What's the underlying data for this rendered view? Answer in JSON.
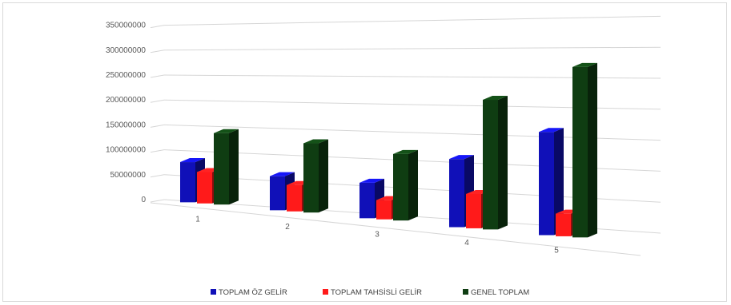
{
  "chart_data": {
    "type": "bar",
    "title": "",
    "xlabel": "",
    "ylabel": "",
    "categories": [
      "1",
      "2",
      "3",
      "4",
      "5"
    ],
    "yticks": [
      "0",
      "50000000",
      "100000000",
      "150000000",
      "200000000",
      "250000000",
      "300000000",
      "350000000"
    ],
    "ylim": [
      0,
      350000000
    ],
    "grid": true,
    "legend_position": "bottom",
    "series": [
      {
        "name": "TOPLAM ÖZ GELİR",
        "color": "#1010b8",
        "values": [
          80000000,
          65000000,
          65000000,
          120000000,
          175000000
        ]
      },
      {
        "name": "TOPLAM TAHSİSLİ GELİR",
        "color": "#ff1a1a",
        "values": [
          62000000,
          50000000,
          35000000,
          60000000,
          38000000
        ]
      },
      {
        "name": "GENEL TOPLAM",
        "color": "#0f3d12",
        "values": [
          140000000,
          130000000,
          120000000,
          225000000,
          285000000
        ]
      }
    ]
  }
}
